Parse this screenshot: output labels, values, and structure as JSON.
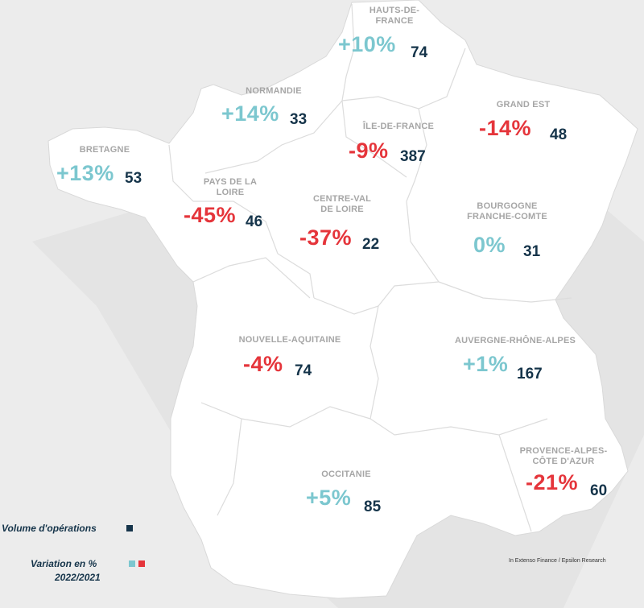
{
  "colors": {
    "background": "#ececec",
    "map_fill": "#ffffff",
    "border_line": "#d8d8d8",
    "region_label": "#a6a6a6",
    "positive": "#7cc7cf",
    "negative": "#e5353b",
    "volume": "#15344a"
  },
  "regions": [
    {
      "id": "hauts-de-france",
      "name": [
        "HAUTS-DE-",
        "FRANCE"
      ],
      "variation": "+10%",
      "trend": "positive",
      "volume": "74"
    },
    {
      "id": "normandie",
      "name": [
        "NORMANDIE"
      ],
      "variation": "+14%",
      "trend": "positive",
      "volume": "33"
    },
    {
      "id": "ile-de-france",
      "name": [
        "ÎLE-DE-FRANCE"
      ],
      "variation": "-9%",
      "trend": "negative",
      "volume": "387"
    },
    {
      "id": "grand-est",
      "name": [
        "GRAND EST"
      ],
      "variation": "-14%",
      "trend": "negative",
      "volume": "48"
    },
    {
      "id": "bretagne",
      "name": [
        "BRETAGNE"
      ],
      "variation": "+13%",
      "trend": "positive",
      "volume": "53"
    },
    {
      "id": "pays-de-la-loire",
      "name": [
        "PAYS DE LA",
        "LOIRE"
      ],
      "variation": "-45%",
      "trend": "negative",
      "volume": "46"
    },
    {
      "id": "centre-val-de-loire",
      "name": [
        "CENTRE-VAL",
        "DE LOIRE"
      ],
      "variation": "-37%",
      "trend": "negative",
      "volume": "22"
    },
    {
      "id": "bourgogne-franche-comte",
      "name": [
        "BOURGOGNE",
        "FRANCHE-COMTE"
      ],
      "variation": "0%",
      "trend": "positive",
      "volume": "31"
    },
    {
      "id": "nouvelle-aquitaine",
      "name": [
        "NOUVELLE-AQUITAINE"
      ],
      "variation": "-4%",
      "trend": "negative",
      "volume": "74"
    },
    {
      "id": "auvergne-rhone-alpes",
      "name": [
        "AUVERGNE-RHÔNE-ALPES"
      ],
      "variation": "+1%",
      "trend": "positive",
      "volume": "167"
    },
    {
      "id": "provence-alpes-cote-dazur",
      "name": [
        "PROVENCE-ALPES-",
        "CÔTE D'AZUR"
      ],
      "variation": "-21%",
      "trend": "negative",
      "volume": "60"
    },
    {
      "id": "occitanie",
      "name": [
        "OCCITANIE"
      ],
      "variation": "+5%",
      "trend": "positive",
      "volume": "85"
    }
  ],
  "legend": {
    "volume_label": "Volume d'opérations",
    "variation_label_line1": "Variation en %",
    "variation_label_line2": "2022/2021"
  },
  "source": "In Extenso Finance / Epsilon Research"
}
